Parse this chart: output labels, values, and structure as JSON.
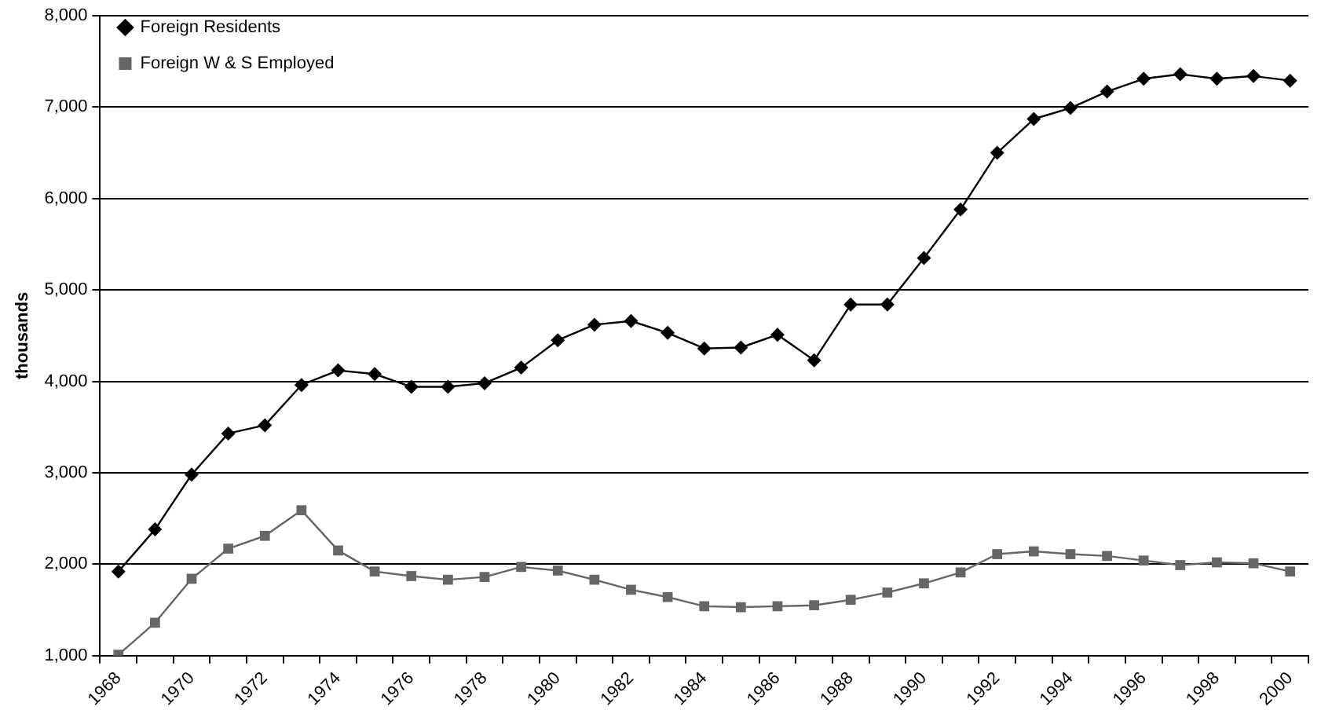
{
  "chart_data": {
    "type": "line",
    "ylabel": "thousands",
    "categories": [
      "1968",
      null,
      "1970",
      null,
      "1972",
      null,
      "1974",
      null,
      "1976",
      null,
      "1978",
      null,
      "1980",
      null,
      "1982",
      null,
      "1984",
      null,
      "1986",
      null,
      "1988",
      null,
      "1990",
      null,
      "1992",
      null,
      "1994",
      null,
      "1996",
      null,
      "1998",
      null,
      "2000"
    ],
    "series": [
      {
        "name": "Foreign Residents",
        "color": "#000000",
        "marker": "diamond",
        "values": [
          1920,
          2380,
          2980,
          3430,
          3520,
          3960,
          4120,
          4080,
          3940,
          3940,
          3980,
          4150,
          4450,
          4620,
          4660,
          4530,
          4360,
          4370,
          4510,
          4230,
          4840,
          4840,
          5350,
          5880,
          6500,
          6870,
          6990,
          7170,
          7310,
          7360,
          7310,
          7340,
          7290
        ]
      },
      {
        "name": "Foreign W & S Employed",
        "color": "#666666",
        "marker": "square",
        "values": [
          1010,
          1360,
          1840,
          2170,
          2310,
          2590,
          2150,
          1920,
          1870,
          1830,
          1860,
          1970,
          1930,
          1830,
          1720,
          1640,
          1540,
          1530,
          1540,
          1550,
          1610,
          1690,
          1790,
          1910,
          2110,
          2140,
          2110,
          2090,
          2040,
          1990,
          2020,
          2010,
          1920
        ]
      }
    ],
    "ylim": [
      1000,
      8000
    ],
    "yticks": [
      {
        "value": 1000,
        "label": "1,000"
      },
      {
        "value": 2000,
        "label": "2,000"
      },
      {
        "value": 3000,
        "label": "3,000"
      },
      {
        "value": 4000,
        "label": "4,000"
      },
      {
        "value": 5000,
        "label": "5,000"
      },
      {
        "value": 6000,
        "label": "6,000"
      },
      {
        "value": 7000,
        "label": "7,000"
      },
      {
        "value": 8000,
        "label": "8,000"
      }
    ],
    "grid": "y",
    "legend": "top left",
    "line_style": "solid"
  }
}
